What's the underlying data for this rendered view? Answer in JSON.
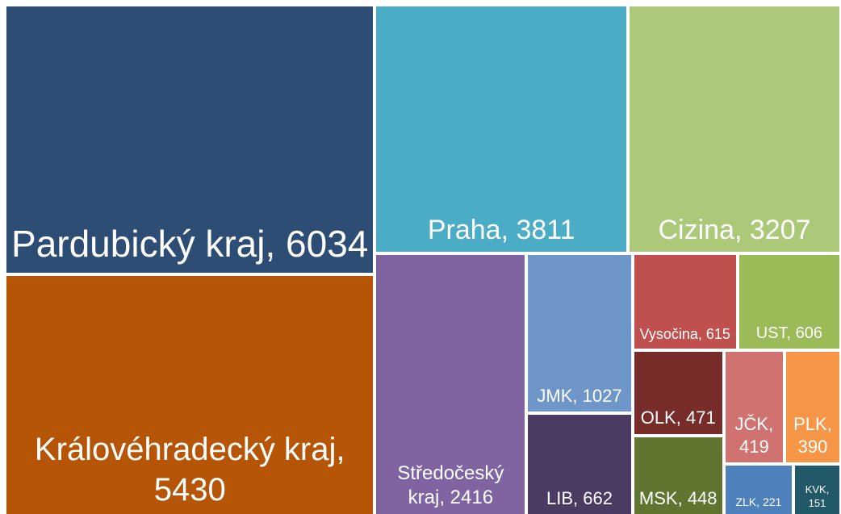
{
  "chart_data": {
    "type": "treemap",
    "label_separator": ",",
    "categories": [
      "Pardubický kraj",
      "Královéhradecký kraj",
      "Praha",
      "Cizina",
      "Středočeský kraj",
      "JMK",
      "LIB",
      "Vysočina",
      "UST",
      "OLK",
      "MSK",
      "JČK",
      "PLK",
      "ZLK",
      "KVK"
    ],
    "values": [
      6034,
      5430,
      3811,
      3207,
      2416,
      1027,
      662,
      615,
      606,
      471,
      448,
      419,
      390,
      221,
      151
    ],
    "colors": [
      "#2e4d74",
      "#b55505",
      "#4bacc6",
      "#acc97a",
      "#8064a2",
      "#6e96c8",
      "#4b3a61",
      "#c0504d",
      "#9bbb59",
      "#772c2a",
      "#5f7530",
      "#d07270",
      "#f79646",
      "#4f81bd",
      "#215968"
    ]
  }
}
